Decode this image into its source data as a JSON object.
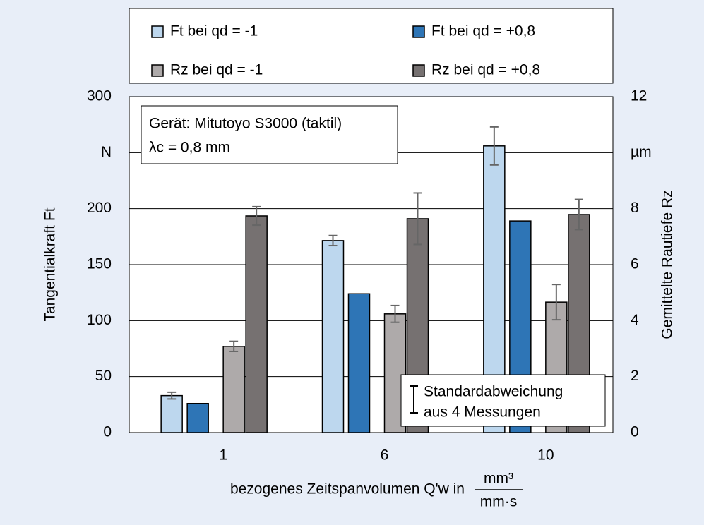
{
  "chart_data": {
    "type": "bar",
    "categories": [
      "1",
      "6",
      "10"
    ],
    "series": [
      {
        "name": "Ft bei qd = -1",
        "color": "#bdd7ee",
        "values": [
          33,
          171.5,
          256
        ],
        "errors": [
          3,
          4.5,
          17
        ]
      },
      {
        "name": "Ft bei qd = +0,8",
        "color": "#2e75b6",
        "values": [
          26,
          124,
          189
        ]
      },
      {
        "name": "Rz bei qd = -1",
        "color": "#aeaaaa",
        "axis": "y2",
        "values": [
          3.08,
          4.24,
          4.66
        ],
        "errors": [
          0.18,
          0.3,
          0.63
        ]
      },
      {
        "name": "Rz bei qd = +0,8",
        "color": "#767171",
        "axis": "y2",
        "values": [
          7.74,
          7.64,
          7.79
        ],
        "errors": [
          0.33,
          0.92,
          0.54
        ]
      }
    ],
    "ylim": [
      0,
      300
    ],
    "yticks": [
      0,
      50,
      100,
      150,
      200,
      {
        "value": 250,
        "label": "N"
      },
      300
    ],
    "y2lim": [
      0,
      12
    ],
    "y2ticks": [
      0,
      2,
      4,
      6,
      8,
      {
        "value": 10,
        "label": "µm"
      },
      12
    ],
    "ylabel": "Tangentialkraft Ft",
    "y2label": "Gemittelte Rautiefe Rz",
    "xlabel": "bezogenes Zeitspanvolumen Q'w in",
    "xlabel_unit_num": "mm³",
    "xlabel_unit_den": "mm·s",
    "annotations": [
      "Gerät: Mitutoyo S3000 (taktil)",
      "λc = 0,8 mm"
    ],
    "error_note": [
      "Standardabweichung",
      "aus 4 Messungen"
    ],
    "grid": true
  }
}
